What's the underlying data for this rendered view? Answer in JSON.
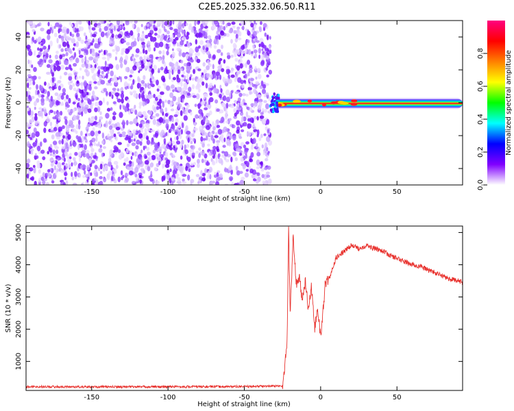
{
  "figure": {
    "title": "C2E5.2025.332.06.50.R11"
  },
  "chart_data": [
    {
      "type": "heatmap",
      "title": "C2E5.2025.332.06.50.R11",
      "xlabel": "Height of straight line (km)",
      "ylabel": "Frequency (Hz)",
      "xlim": [
        -193,
        93
      ],
      "ylim": [
        -50,
        50
      ],
      "xticks": [
        -150,
        -100,
        -50,
        0,
        50
      ],
      "yticks": [
        -40,
        -20,
        0,
        20,
        40
      ],
      "noise_region_x": [
        -193,
        -33
      ],
      "signal_region_x": [
        -33,
        93
      ],
      "signal_frequency_hz": 0,
      "colorbar": {
        "label": "Normalized spectral amplitude",
        "range": [
          0,
          1
        ],
        "ticks": [
          0.0,
          0.2,
          0.4,
          0.6,
          0.8
        ],
        "colors": [
          "#ffffff",
          "#8000ff",
          "#0000ff",
          "#00ffff",
          "#00ff00",
          "#ffff00",
          "#ff8000",
          "#ff0000",
          "#ff0080"
        ]
      }
    },
    {
      "type": "line",
      "xlabel": "Height of straight line (km)",
      "ylabel": "SNR (10 * v/v)",
      "xlim": [
        -193,
        93
      ],
      "ylim": [
        100,
        5200
      ],
      "xticks": [
        -150,
        -100,
        -50,
        0,
        50
      ],
      "yticks": [
        1000,
        2000,
        3000,
        4000,
        5000
      ],
      "color": "#e8312d",
      "x": [
        -193,
        -150,
        -100,
        -50,
        -25,
        -22,
        -21,
        -20,
        -18,
        -16,
        -14,
        -12,
        -10,
        -8,
        -6,
        -4,
        -2,
        0,
        3,
        6,
        10,
        15,
        20,
        25,
        30,
        35,
        40,
        45,
        50,
        55,
        60,
        65,
        70,
        75,
        80,
        85,
        90,
        93
      ],
      "y": [
        220,
        210,
        215,
        220,
        240,
        1500,
        5200,
        2400,
        4900,
        3400,
        3600,
        2900,
        3500,
        2600,
        3300,
        2000,
        2700,
        1700,
        3400,
        3600,
        4200,
        4400,
        4600,
        4500,
        4600,
        4500,
        4450,
        4300,
        4200,
        4100,
        4000,
        3950,
        3850,
        3750,
        3650,
        3550,
        3500,
        3450
      ]
    }
  ]
}
